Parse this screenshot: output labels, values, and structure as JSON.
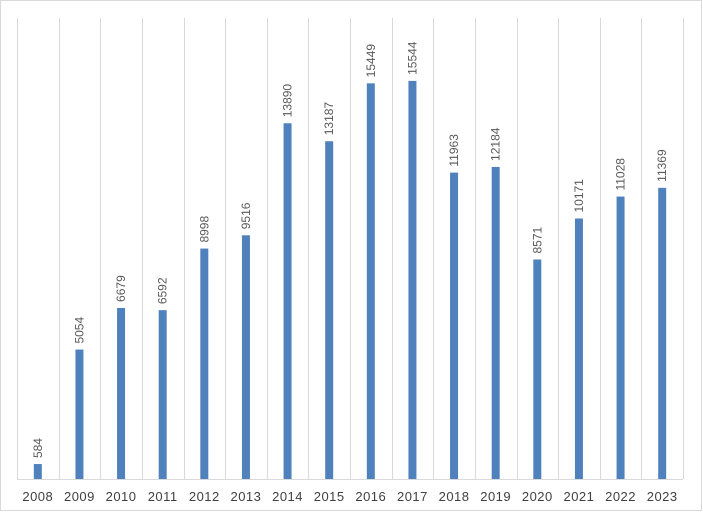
{
  "chart_data": {
    "type": "bar",
    "title": "",
    "xlabel": "",
    "ylabel": "",
    "categories": [
      "2008",
      "2009",
      "2010",
      "2011",
      "2012",
      "2013",
      "2014",
      "2015",
      "2016",
      "2017",
      "2018",
      "2019",
      "2020",
      "2021",
      "2022",
      "2023"
    ],
    "values": [
      584,
      5054,
      6679,
      6592,
      8998,
      9516,
      13890,
      13187,
      15449,
      15544,
      11963,
      12184,
      8571,
      10171,
      11028,
      11369
    ],
    "ylim": [
      0,
      18000
    ],
    "grid": "vertical",
    "legend": "none",
    "data_labels": "rotated-vertical",
    "bar_color": "#4f81bd"
  }
}
